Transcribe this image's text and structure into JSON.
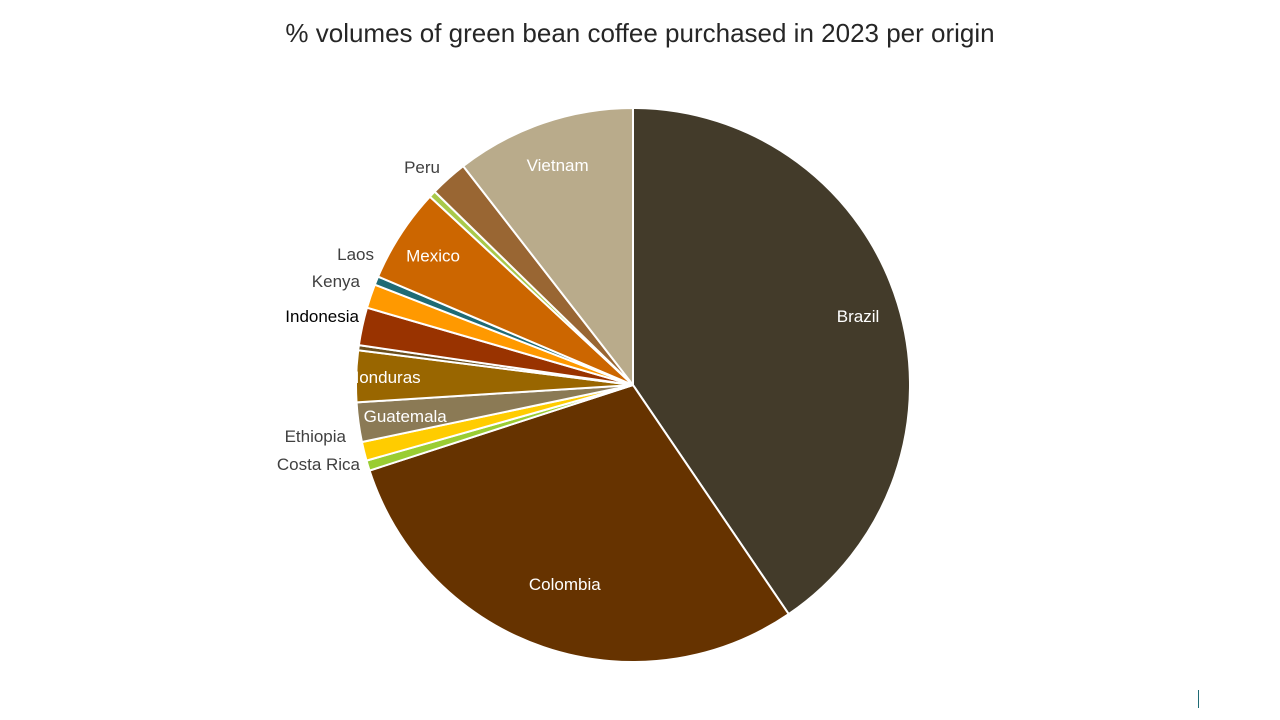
{
  "chart_data": {
    "type": "pie",
    "title": "% volumes of green bean coffee purchased in 2023 per origin",
    "start_angle_deg": 0,
    "direction": "clockwise",
    "legend": "none",
    "slices": [
      {
        "label": "Brazil",
        "value": 40.5,
        "color": "#433b2a",
        "label_color": "#ffffff"
      },
      {
        "label": "Colombia",
        "value": 29.5,
        "color": "#663300",
        "label_color": "#ffffff"
      },
      {
        "label": "Costa Rica",
        "value": 0.6,
        "color": "#9acd32",
        "label_color": "#404040"
      },
      {
        "label": "Ethiopia",
        "value": 1.1,
        "color": "#ffcc00",
        "label_color": "#404040"
      },
      {
        "label": "Guatemala",
        "value": 2.3,
        "color": "#8b7a55",
        "label_color": "#ffffff"
      },
      {
        "label": "Honduras",
        "value": 3.0,
        "color": "#996600",
        "label_color": "#ffffff"
      },
      {
        "label": "",
        "value": 0.3,
        "color": "#6b4f1d",
        "label_color": "#404040"
      },
      {
        "label": "Indonesia",
        "value": 2.2,
        "color": "#993300",
        "label_color": "#000000"
      },
      {
        "label": "Kenya",
        "value": 1.4,
        "color": "#ff9900",
        "label_color": "#404040"
      },
      {
        "label": "Laos",
        "value": 0.5,
        "color": "#1f6b75",
        "label_color": "#404040"
      },
      {
        "label": "Mexico",
        "value": 5.5,
        "color": "#cc6600",
        "label_color": "#ffffff"
      },
      {
        "label": "",
        "value": 0.4,
        "color": "#a9c94a",
        "label_color": "#404040"
      },
      {
        "label": "Peru",
        "value": 2.2,
        "color": "#996633",
        "label_color": "#404040"
      },
      {
        "label": "Vietnam",
        "value": 10.5,
        "color": "#b9ab8b",
        "label_color": "#ffffff"
      }
    ]
  }
}
